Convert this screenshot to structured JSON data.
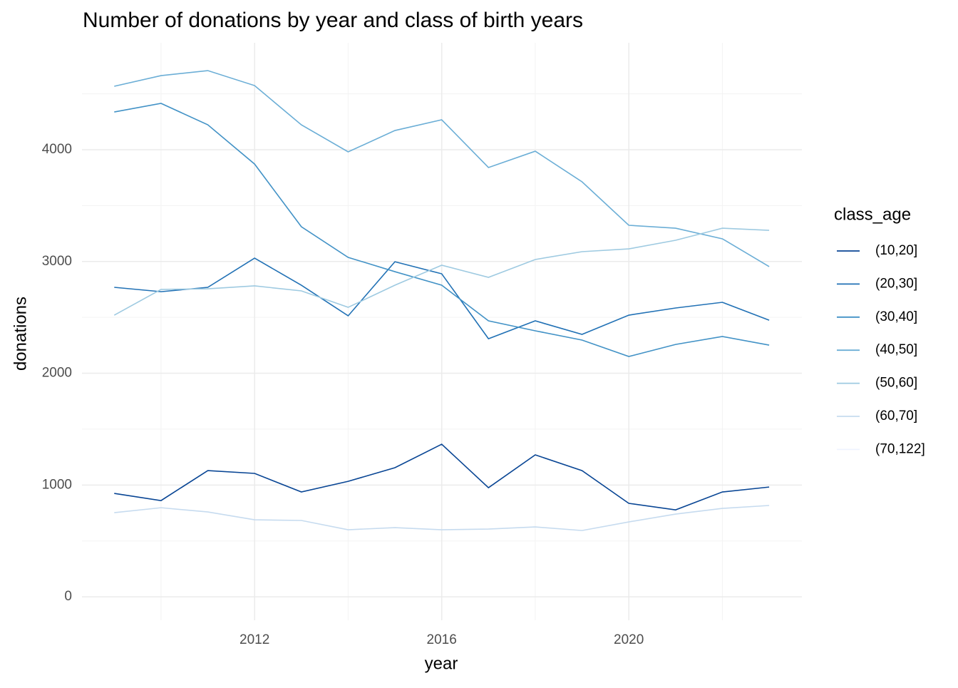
{
  "chart_data": {
    "type": "line",
    "title": "Number of donations by year and class of birth years",
    "x_label": "year",
    "y_label": "donations",
    "legend_title": "class_age",
    "x": [
      2009,
      2010,
      2011,
      2012,
      2013,
      2014,
      2015,
      2016,
      2017,
      2018,
      2019,
      2020,
      2021,
      2022,
      2023
    ],
    "series": [
      {
        "name": "(10,20]",
        "color": "#084594",
        "values": [
          925,
          861,
          1129,
          1104,
          938,
          1033,
          1155,
          1365,
          976,
          1270,
          1129,
          836,
          778,
          938,
          982
        ]
      },
      {
        "name": "(20,30]",
        "color": "#2171b5",
        "values": [
          2769,
          2730,
          2769,
          3030,
          2788,
          2514,
          2998,
          2890,
          2309,
          2469,
          2348,
          2520,
          2584,
          2635,
          2475
        ]
      },
      {
        "name": "(30,40]",
        "color": "#4292c6",
        "values": [
          4338,
          4415,
          4223,
          3872,
          3311,
          3037,
          2909,
          2788,
          2469,
          2380,
          2297,
          2150,
          2258,
          2329,
          2252
        ]
      },
      {
        "name": "(40,50]",
        "color": "#6baed6",
        "values": [
          4568,
          4663,
          4708,
          4574,
          4223,
          3981,
          4172,
          4268,
          3841,
          3987,
          3713,
          3324,
          3298,
          3203,
          2954
        ]
      },
      {
        "name": "(50,60]",
        "color": "#9ecae1",
        "values": [
          2520,
          2750,
          2756,
          2782,
          2737,
          2590,
          2788,
          2967,
          2858,
          3018,
          3088,
          3113,
          3190,
          3298,
          3279
        ]
      },
      {
        "name": "(60,70]",
        "color": "#c6dbef",
        "values": [
          753,
          797,
          759,
          689,
          683,
          600,
          619,
          600,
          606,
          625,
          593,
          670,
          740,
          791,
          817
        ]
      },
      {
        "name": "(70,122]",
        "color": "#eff3ff",
        "values": [
          null,
          null,
          null,
          null,
          null,
          null,
          null,
          null,
          null,
          null,
          null,
          null,
          null,
          null,
          null
        ]
      }
    ],
    "xlim": [
      2008.31,
      2023.7
    ],
    "ylim": [
      -210,
      4957
    ],
    "xticks": [
      2012,
      2016,
      2020
    ],
    "yticks": [
      0,
      1000,
      2000,
      3000,
      4000
    ],
    "x_minor_ticks": [
      2010,
      2014,
      2018,
      2022
    ],
    "y_minor_ticks": [
      500,
      1500,
      2500,
      3500,
      4500
    ],
    "grid": true,
    "legend": "right"
  }
}
